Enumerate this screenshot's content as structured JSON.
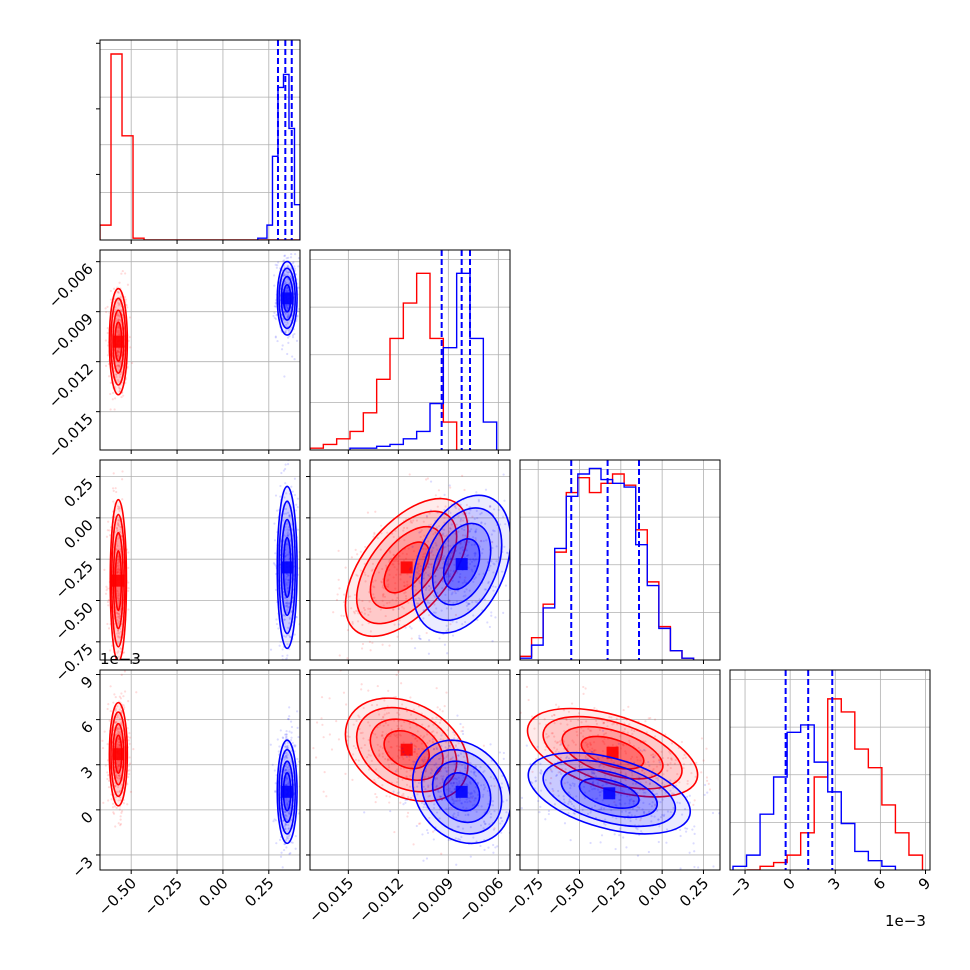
{
  "chart_data": {
    "type": "corner",
    "grid": true,
    "colors": {
      "series_a": "#ff0000",
      "series_b": "#0000ff"
    },
    "series": [
      {
        "color": "#ff0000"
      },
      {
        "color": "#0000ff"
      }
    ],
    "parameters": [
      {
        "range": [
          -0.67,
          0.42
        ],
        "ticks": [
          -0.5,
          -0.25,
          0.0,
          0.25
        ],
        "tick_labels": [
          "−0.50",
          "−0.25",
          "0.00",
          "0.25"
        ],
        "quantiles_b": [
          0.3,
          0.34,
          0.375
        ],
        "hist_a": {
          "edges": [
            -0.67,
            -0.61,
            -0.55,
            -0.49,
            -0.43,
            0.42
          ],
          "values": [
            0.08,
            1.0,
            0.56,
            0.01,
            0.0
          ]
        },
        "hist_b": {
          "edges": [
            0.19,
            0.24,
            0.27,
            0.3,
            0.33,
            0.36,
            0.39,
            0.42
          ],
          "values": [
            0.01,
            0.08,
            0.45,
            0.82,
            0.89,
            0.6,
            0.19
          ]
        }
      },
      {
        "range": [
          -0.0173,
          -0.0053
        ],
        "ticks": [
          -0.015,
          -0.012,
          -0.009,
          -0.006
        ],
        "tick_labels": [
          "−0.015",
          "−0.012",
          "−0.009",
          "−0.006"
        ],
        "quantiles_b": [
          -0.0094,
          -0.0082,
          -0.0077
        ],
        "hist_a": {
          "edges": [
            -0.0173,
            -0.0165,
            -0.0157,
            -0.0149,
            -0.0141,
            -0.0133,
            -0.0125,
            -0.0117,
            -0.0109,
            -0.0101,
            -0.0093,
            -0.0085
          ],
          "values": [
            0.01,
            0.03,
            0.06,
            0.1,
            0.2,
            0.38,
            0.6,
            0.79,
            0.95,
            0.6,
            0.15
          ]
        },
        "hist_b": {
          "edges": [
            -0.0149,
            -0.0141,
            -0.0133,
            -0.0125,
            -0.0117,
            -0.0109,
            -0.0101,
            -0.0093,
            -0.0085,
            -0.0077,
            -0.0069,
            -0.0061
          ],
          "values": [
            0.01,
            0.01,
            0.02,
            0.03,
            0.06,
            0.1,
            0.25,
            0.55,
            0.95,
            0.6,
            0.15
          ]
        }
      },
      {
        "range": [
          -0.86,
          0.35
        ],
        "ticks": [
          -0.75,
          -0.5,
          -0.25,
          0.0,
          0.25
        ],
        "tick_labels": [
          "−0.75",
          "−0.50",
          "−0.25",
          "0.00",
          "0.25"
        ],
        "quantiles_b": [
          -0.55,
          -0.33,
          -0.14
        ],
        "hist_a": {
          "edges": [
            -0.86,
            -0.79,
            -0.72,
            -0.65,
            -0.58,
            -0.51,
            -0.44,
            -0.37,
            -0.3,
            -0.23,
            -0.16,
            -0.09,
            -0.02,
            0.05,
            0.12,
            0.19
          ],
          "values": [
            0.02,
            0.12,
            0.3,
            0.58,
            0.9,
            0.98,
            0.9,
            0.95,
            1.0,
            0.94,
            0.7,
            0.42,
            0.18,
            0.05,
            0.01
          ]
        },
        "hist_b": {
          "edges": [
            -0.86,
            -0.79,
            -0.72,
            -0.65,
            -0.58,
            -0.51,
            -0.44,
            -0.37,
            -0.3,
            -0.23,
            -0.16,
            -0.09,
            -0.02,
            0.05,
            0.12,
            0.19
          ],
          "values": [
            0.01,
            0.08,
            0.28,
            0.6,
            0.88,
            1.0,
            1.03,
            0.97,
            0.95,
            0.93,
            0.62,
            0.4,
            0.17,
            0.05,
            0.01
          ]
        }
      },
      {
        "range": [
          -0.004,
          0.0093
        ],
        "ticks": [
          -0.003,
          0.0,
          0.003,
          0.006,
          0.009
        ],
        "tick_labels": [
          "−3",
          "0",
          "3",
          "6",
          "9"
        ],
        "offset": "1e−3",
        "quantiles_b": [
          -0.0003,
          0.0012,
          0.0028
        ],
        "hist_a": {
          "edges": [
            -0.0029,
            -0.002,
            -0.0011,
            -0.0002,
            0.0007,
            0.0016,
            0.0025,
            0.0034,
            0.0043,
            0.0052,
            0.0061,
            0.007,
            0.0079,
            0.0088
          ],
          "values": [
            0.0,
            0.02,
            0.04,
            0.08,
            0.2,
            0.5,
            0.92,
            0.85,
            0.65,
            0.55,
            0.35,
            0.2,
            0.08
          ]
        },
        "hist_b": {
          "edges": [
            -0.0038,
            -0.0029,
            -0.002,
            -0.0011,
            -0.0002,
            0.0007,
            0.0016,
            0.0025,
            0.0034,
            0.0043,
            0.0052,
            0.0061,
            0.007
          ],
          "values": [
            0.02,
            0.08,
            0.3,
            0.5,
            0.74,
            0.78,
            0.58,
            0.42,
            0.25,
            0.1,
            0.05,
            0.02
          ]
        }
      }
    ],
    "pair_blobs": {
      "1_0": {
        "a": {
          "center": [
            -0.57,
            -0.0108
          ],
          "sd": [
            0.02,
            0.0013
          ]
        },
        "b": {
          "center": [
            0.35,
            -0.0082
          ],
          "sd": [
            0.022,
            0.0009
          ]
        }
      },
      "2_0": {
        "a": {
          "center": [
            -0.57,
            -0.38
          ],
          "sd": [
            0.018,
            0.2
          ]
        },
        "b": {
          "center": [
            0.35,
            -0.3
          ],
          "sd": [
            0.022,
            0.2
          ]
        }
      },
      "2_1": {
        "a": {
          "center": [
            -0.0115,
            -0.3
          ],
          "sd": [
            0.0015,
            0.17
          ],
          "rho": 0.55
        },
        "b": {
          "center": [
            -0.0082,
            -0.28
          ],
          "sd": [
            0.0012,
            0.17
          ],
          "rho": 0.35
        }
      },
      "3_0": {
        "a": {
          "center": [
            -0.57,
            0.0037
          ],
          "sd": [
            0.02,
            0.0014
          ]
        },
        "b": {
          "center": [
            0.35,
            0.0012
          ],
          "sd": [
            0.022,
            0.0014
          ]
        }
      },
      "3_1": {
        "a": {
          "center": [
            -0.0115,
            0.004
          ],
          "sd": [
            0.0015,
            0.0014
          ],
          "rho": -0.3
        },
        "b": {
          "center": [
            -0.0082,
            0.0012
          ],
          "sd": [
            0.0012,
            0.0014
          ],
          "rho": -0.2
        }
      },
      "3_2": {
        "a": {
          "center": [
            -0.3,
            0.0038
          ],
          "sd": [
            0.21,
            0.0012
          ],
          "rho": -0.5
        },
        "b": {
          "center": [
            -0.32,
            0.0011
          ],
          "sd": [
            0.2,
            0.0011
          ],
          "rho": -0.45
        }
      }
    }
  }
}
